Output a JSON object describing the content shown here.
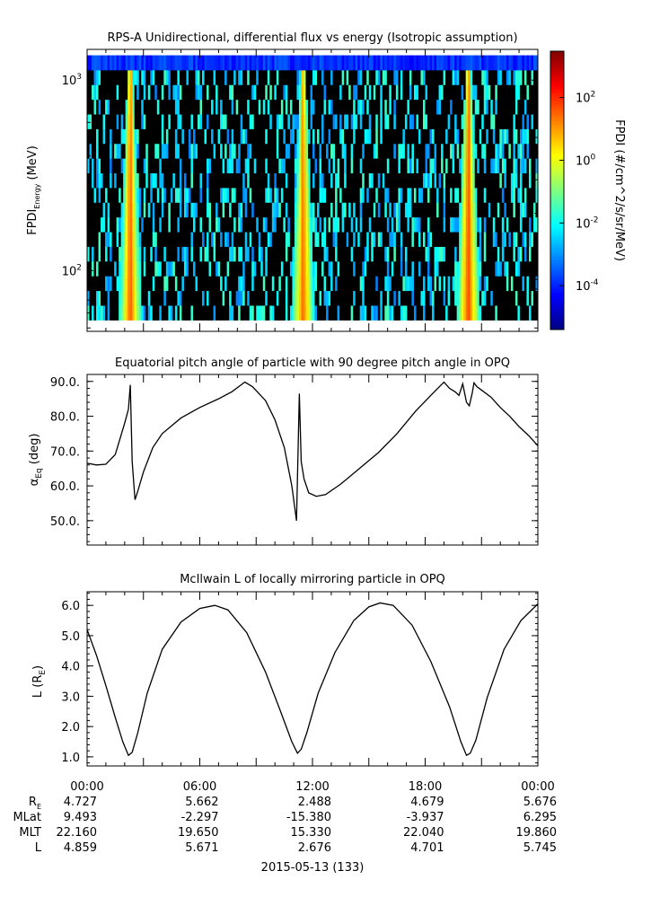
{
  "chart_data": [
    {
      "type": "heatmap",
      "title": "RPS-A Unidirectional, differential flux vs energy (Isotropic assumption)",
      "ylabel_main": "FPDI",
      "ylabel_sub": "Energy",
      "ylabel_unit": " (MeV)",
      "yscale": "log",
      "ylim": [
        48,
        1450
      ],
      "y_ticks": [
        {
          "value": 100,
          "base": "10",
          "exp": "2"
        },
        {
          "value": 1000,
          "base": "10",
          "exp": "3"
        }
      ],
      "colorbar": {
        "label": "FPDI (#/cm^2/s/sr/MeV)",
        "scale": "log",
        "range": [
          4e-06,
          3000
        ],
        "ticks": [
          {
            "value": 0.0001,
            "base": "10",
            "exp": "-4"
          },
          {
            "value": 0.01,
            "base": "10",
            "exp": "-2"
          },
          {
            "value": 1,
            "base": "10",
            "exp": "0"
          },
          {
            "value": 100,
            "base": "10",
            "exp": "2"
          }
        ]
      },
      "energy_range_mev": [
        55,
        1350
      ],
      "flux_peaks": [
        {
          "time_hours": 2.3,
          "peak_flux": 50
        },
        {
          "time_hours": 11.5,
          "peak_flux": 40
        },
        {
          "time_hours": 20.3,
          "peak_flux": 80
        }
      ],
      "background_flux": 0
    },
    {
      "type": "line",
      "title": "Equatorial pitch angle of particle with 90 degree pitch angle in OPQ",
      "ylabel_main": "α",
      "ylabel_sub": "Eq",
      "ylabel_unit": " (deg)",
      "ylim": [
        43,
        92
      ],
      "y_ticks": [
        50,
        60,
        70,
        80,
        90
      ],
      "series": [
        {
          "x": [
            0,
            0.5,
            1.0,
            1.5,
            2.0,
            2.2,
            2.3,
            2.4,
            2.55,
            2.7,
            3.0,
            3.5,
            4.0,
            5.0,
            6.0,
            7.0,
            7.7,
            8.4,
            8.8,
            9.5,
            10.0,
            10.5,
            10.9,
            11.15,
            11.3,
            11.4,
            11.55,
            11.8,
            12.2,
            12.7,
            13.5,
            14.5,
            15.5,
            16.5,
            17.5,
            18.3,
            19.0,
            19.3,
            19.6,
            19.8,
            20.0,
            20.2,
            20.35,
            20.5,
            20.6,
            20.75,
            21.0,
            21.5,
            22.0,
            22.5,
            23.0,
            23.5,
            24.0
          ],
          "y": [
            66.5,
            66.0,
            66.2,
            69.0,
            78.0,
            82.0,
            89.0,
            67.0,
            56.0,
            58.5,
            64.0,
            71.0,
            75.0,
            79.5,
            82.5,
            85.0,
            87.0,
            89.8,
            88.5,
            84.5,
            79.0,
            71.0,
            60.0,
            50.0,
            86.5,
            67.0,
            62.0,
            58.0,
            57.0,
            57.5,
            60.5,
            65.0,
            69.5,
            75.0,
            81.5,
            86.0,
            89.8,
            88.0,
            87.0,
            86.0,
            89.3,
            84.0,
            83.0,
            86.5,
            89.6,
            88.5,
            87.5,
            85.5,
            82.5,
            80.0,
            77.0,
            74.5,
            71.5
          ]
        }
      ]
    },
    {
      "type": "line",
      "title": "McIlwain L of locally mirroring particle in OPQ",
      "ylabel_main": "L (R",
      "ylabel_sub": "E",
      "ylabel_unit": ")",
      "ylim": [
        0.7,
        6.45
      ],
      "y_ticks": [
        1.0,
        2.0,
        3.0,
        4.0,
        5.0,
        6.0
      ],
      "series": [
        {
          "x": [
            0.0,
            0.5,
            1.0,
            1.5,
            1.9,
            2.2,
            2.4,
            2.7,
            3.2,
            4.0,
            5.0,
            6.0,
            6.8,
            7.5,
            8.5,
            9.5,
            10.3,
            10.9,
            11.2,
            11.4,
            11.7,
            12.3,
            13.2,
            14.2,
            15.0,
            15.6,
            16.3,
            17.3,
            18.3,
            19.3,
            19.9,
            20.2,
            20.4,
            20.7,
            21.3,
            22.2,
            23.1,
            24.0
          ],
          "y": [
            5.2,
            4.35,
            3.35,
            2.3,
            1.5,
            1.05,
            1.15,
            1.8,
            3.1,
            4.55,
            5.45,
            5.9,
            6.0,
            5.85,
            5.1,
            3.8,
            2.5,
            1.5,
            1.12,
            1.25,
            1.8,
            3.1,
            4.45,
            5.5,
            5.95,
            6.08,
            6.0,
            5.35,
            4.15,
            2.65,
            1.5,
            1.05,
            1.12,
            1.55,
            2.95,
            4.55,
            5.5,
            6.05
          ]
        }
      ]
    }
  ],
  "x_axis": {
    "range_hours": [
      0,
      24
    ],
    "tick_labels": [
      {
        "hour": 0,
        "label": "00:00"
      },
      {
        "hour": 6,
        "label": "06:00"
      },
      {
        "hour": 12,
        "label": "12:00"
      },
      {
        "hour": 18,
        "label": "18:00"
      },
      {
        "hour": 24,
        "label": "00:00"
      }
    ],
    "date_label": "2015-05-13 (133)"
  },
  "ephemeris": [
    {
      "label": "R",
      "label_sub": "E",
      "values": [
        "4.727",
        "5.662",
        "2.488",
        "4.679",
        "5.676"
      ]
    },
    {
      "label": "MLat",
      "label_sub": "",
      "values": [
        "9.493",
        "-2.297",
        "-15.380",
        "-3.937",
        "6.295"
      ]
    },
    {
      "label": "MLT",
      "label_sub": "",
      "values": [
        "22.160",
        "19.650",
        "15.330",
        "22.040",
        "19.860"
      ]
    },
    {
      "label": "L",
      "label_sub": "",
      "values": [
        "4.859",
        "5.671",
        "2.676",
        "4.701",
        "5.745"
      ]
    }
  ]
}
